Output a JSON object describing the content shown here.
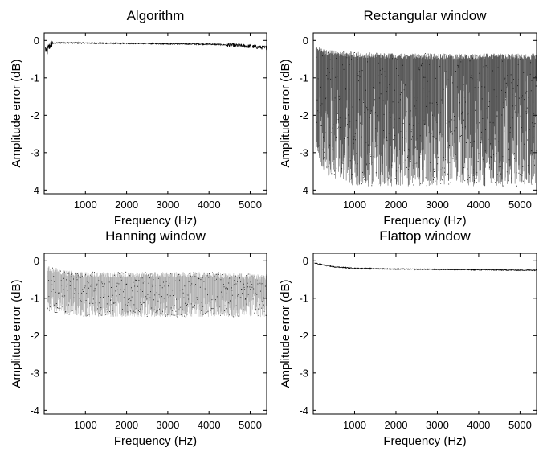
{
  "chart_data": [
    {
      "type": "line",
      "title": "Algorithm",
      "xlabel": "Frequency (Hz)",
      "ylabel": "Amplitude error (dB)",
      "xlim": [
        0,
        5400
      ],
      "ylim": [
        -4.1,
        0.2
      ],
      "xticks": [
        "1000",
        "2000",
        "3000",
        "4000",
        "5000"
      ],
      "yticks": [
        "0",
        "-1",
        "-2",
        "-3",
        "-4"
      ],
      "series": [
        {
          "x": [
            0,
            60,
            100,
            150,
            200,
            400,
            1000,
            2000,
            3000,
            4000,
            4500,
            5000,
            5400
          ],
          "y": [
            -0.1,
            -0.35,
            -0.2,
            -0.12,
            -0.08,
            -0.06,
            -0.07,
            -0.08,
            -0.09,
            -0.1,
            -0.12,
            -0.16,
            -0.2
          ]
        }
      ]
    },
    {
      "type": "line",
      "title": "Rectangular window",
      "xlabel": "Frequency (Hz)",
      "ylabel": "Amplitude error (dB)",
      "xlim": [
        0,
        5400
      ],
      "ylim": [
        -4.1,
        0.2
      ],
      "xticks": [
        "1000",
        "2000",
        "3000",
        "4000",
        "5000"
      ],
      "yticks": [
        "0",
        "-1",
        "-2",
        "-3",
        "-4"
      ],
      "series": [
        {
          "x": [
            0,
            300,
            1000,
            2000,
            3000,
            4000,
            5000,
            5400
          ],
          "y_upper": [
            -0.1,
            -0.25,
            -0.3,
            -0.35,
            -0.35,
            -0.35,
            -0.35,
            -0.35
          ],
          "y_lower": [
            -2.8,
            -3.6,
            -3.9,
            -3.9,
            -3.9,
            -3.9,
            -3.9,
            -3.9
          ]
        }
      ]
    },
    {
      "type": "line",
      "title": "Hanning window",
      "xlabel": "Frequency (Hz)",
      "ylabel": "Amplitude error (dB)",
      "xlim": [
        0,
        5400
      ],
      "ylim": [
        -4.1,
        0.2
      ],
      "xticks": [
        "1000",
        "2000",
        "3000",
        "4000",
        "5000"
      ],
      "yticks": [
        "0",
        "-1",
        "-2",
        "-3",
        "-4"
      ],
      "series": [
        {
          "x": [
            0,
            500,
            1000,
            2000,
            3000,
            4000,
            5000,
            5400
          ],
          "y_upper": [
            -0.1,
            -0.25,
            -0.3,
            -0.3,
            -0.3,
            -0.3,
            -0.35,
            -0.35
          ],
          "y_lower": [
            -1.35,
            -1.45,
            -1.5,
            -1.5,
            -1.5,
            -1.5,
            -1.5,
            -1.5
          ]
        }
      ]
    },
    {
      "type": "line",
      "title": "Flattop window",
      "xlabel": "Frequency (Hz)",
      "ylabel": "Amplitude error (dB)",
      "xlim": [
        0,
        5400
      ],
      "ylim": [
        -4.1,
        0.2
      ],
      "xticks": [
        "1000",
        "2000",
        "3000",
        "4000",
        "5000"
      ],
      "yticks": [
        "0",
        "-1",
        "-2",
        "-3",
        "-4"
      ],
      "series": [
        {
          "x": [
            0,
            200,
            500,
            1000,
            2000,
            3000,
            4000,
            5000,
            5400
          ],
          "y": [
            -0.05,
            -0.1,
            -0.16,
            -0.2,
            -0.22,
            -0.23,
            -0.24,
            -0.25,
            -0.25
          ]
        }
      ]
    }
  ]
}
